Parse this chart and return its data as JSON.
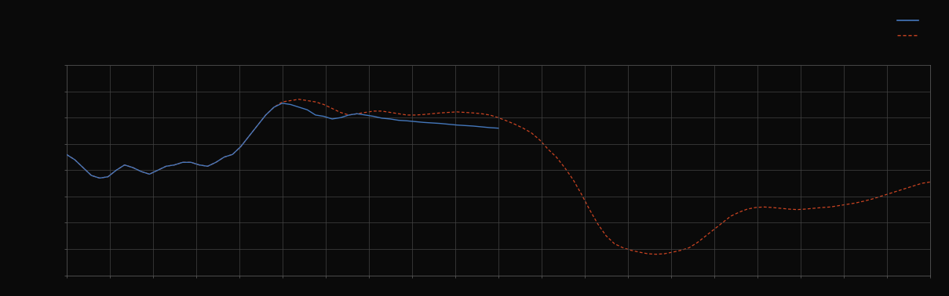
{
  "background_color": "#0a0a0a",
  "grid_color": "#444444",
  "plot_bg_color": "#0a0a0a",
  "blue_color": "#4477bb",
  "red_color": "#cc4422",
  "figsize": [
    12.09,
    3.78
  ],
  "dpi": 100,
  "ylim": [
    0,
    8
  ],
  "xlim": [
    0,
    104
  ],
  "n_ygrid": 9,
  "n_xgrid": 21,
  "blue_x": [
    0,
    1,
    2,
    3,
    4,
    5,
    6,
    7,
    8,
    9,
    10,
    11,
    12,
    13,
    14,
    15,
    16,
    17,
    18,
    19,
    20,
    21,
    22,
    23,
    24,
    25,
    26,
    27,
    28,
    29,
    30,
    31,
    32,
    33,
    34,
    35,
    36,
    37,
    38,
    39,
    40,
    41,
    42,
    43,
    44,
    45,
    46,
    47,
    48,
    49,
    50,
    51,
    52
  ],
  "blue_y": [
    4.6,
    4.4,
    4.1,
    3.8,
    3.7,
    3.75,
    4.0,
    4.2,
    4.1,
    3.95,
    3.85,
    4.0,
    4.15,
    4.2,
    4.3,
    4.3,
    4.2,
    4.15,
    4.3,
    4.5,
    4.6,
    4.9,
    5.3,
    5.7,
    6.1,
    6.4,
    6.55,
    6.5,
    6.4,
    6.3,
    6.1,
    6.05,
    5.95,
    6.0,
    6.1,
    6.15,
    6.1,
    6.05,
    5.98,
    5.95,
    5.9,
    5.88,
    5.85,
    5.82,
    5.8,
    5.78,
    5.75,
    5.72,
    5.7,
    5.68,
    5.65,
    5.62,
    5.6
  ],
  "red_x": [
    0,
    1,
    2,
    3,
    4,
    5,
    6,
    7,
    8,
    9,
    10,
    11,
    12,
    13,
    14,
    15,
    16,
    17,
    18,
    19,
    20,
    21,
    22,
    23,
    24,
    25,
    26,
    27,
    28,
    29,
    30,
    31,
    32,
    33,
    34,
    35,
    36,
    37,
    38,
    39,
    40,
    41,
    42,
    43,
    44,
    45,
    46,
    47,
    48,
    49,
    50,
    51,
    52,
    53,
    54,
    55,
    56,
    57,
    58,
    59,
    60,
    61,
    62,
    63,
    64,
    65,
    66,
    67,
    68,
    69,
    70,
    71,
    72,
    73,
    74,
    75,
    76,
    77,
    78,
    79,
    80,
    81,
    82,
    83,
    84,
    85,
    86,
    87,
    88,
    89,
    90,
    91,
    92,
    93,
    94,
    95,
    96,
    97,
    98,
    99,
    100,
    101,
    102,
    103,
    104
  ],
  "red_y": [
    4.6,
    4.4,
    4.1,
    3.8,
    3.7,
    3.75,
    4.0,
    4.2,
    4.1,
    3.95,
    3.85,
    4.0,
    4.15,
    4.2,
    4.3,
    4.3,
    4.2,
    4.15,
    4.3,
    4.5,
    4.6,
    4.9,
    5.3,
    5.7,
    6.1,
    6.4,
    6.6,
    6.65,
    6.7,
    6.65,
    6.6,
    6.5,
    6.35,
    6.2,
    6.1,
    6.15,
    6.2,
    6.25,
    6.25,
    6.2,
    6.15,
    6.1,
    6.1,
    6.12,
    6.15,
    6.18,
    6.2,
    6.22,
    6.2,
    6.18,
    6.15,
    6.1,
    6.0,
    5.88,
    5.75,
    5.6,
    5.42,
    5.15,
    4.8,
    4.5,
    4.1,
    3.65,
    3.1,
    2.5,
    1.95,
    1.5,
    1.2,
    1.05,
    0.95,
    0.88,
    0.82,
    0.8,
    0.82,
    0.88,
    0.95,
    1.05,
    1.25,
    1.5,
    1.75,
    2.0,
    2.25,
    2.4,
    2.52,
    2.58,
    2.6,
    2.58,
    2.55,
    2.52,
    2.5,
    2.52,
    2.55,
    2.58,
    2.6,
    2.65,
    2.7,
    2.75,
    2.82,
    2.9,
    3.0,
    3.1,
    3.2,
    3.3,
    3.4,
    3.5,
    3.55
  ]
}
